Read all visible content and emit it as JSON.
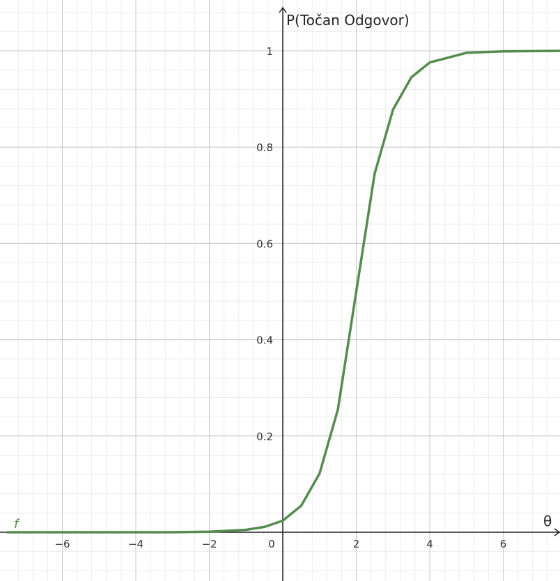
{
  "chart_data": {
    "type": "line",
    "title": "",
    "xlabel": "θ",
    "ylabel": "P(Točan Odgovor)",
    "xlim": [
      -7.5,
      7.6
    ],
    "ylim": [
      -0.1,
      1.1
    ],
    "grid": true,
    "x_ticks": [
      -6,
      -4,
      -2,
      0,
      2,
      4,
      6
    ],
    "x_tick_labels": [
      "−6",
      "−4",
      "−2",
      "0",
      "2",
      "4",
      "6"
    ],
    "y_ticks": [
      0.2,
      0.4,
      0.6,
      0.8,
      1
    ],
    "y_tick_labels": [
      "0.2",
      "0.4",
      "0.6",
      "0.8",
      "1"
    ],
    "series": [
      {
        "name": "f",
        "color": "#548c4e",
        "x": [
          -7.5,
          -6,
          -4,
          -3,
          -2,
          -1,
          -0.5,
          0,
          0.5,
          1,
          1.5,
          2,
          2.5,
          3,
          3.5,
          4,
          5,
          6,
          7.6
        ],
        "y": [
          0.0,
          0.0,
          0.0,
          0.0,
          0.001,
          0.005,
          0.011,
          0.024,
          0.055,
          0.122,
          0.255,
          0.5,
          0.745,
          0.878,
          0.945,
          0.976,
          0.996,
          0.999,
          1.0
        ]
      }
    ]
  }
}
